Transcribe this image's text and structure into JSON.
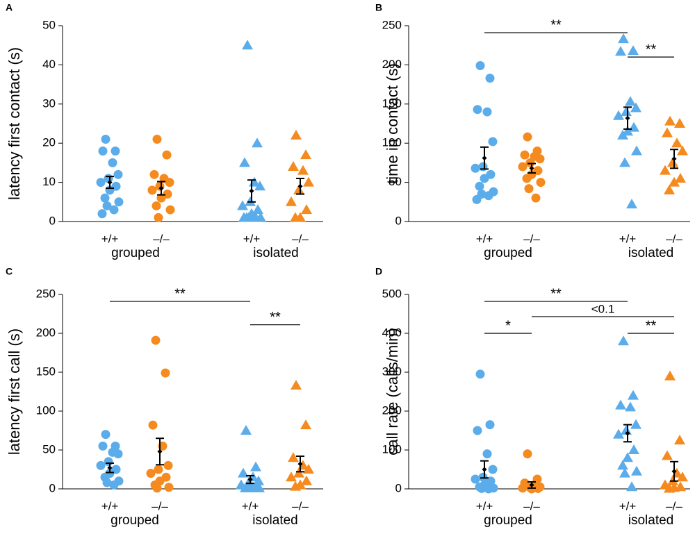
{
  "chart_data": [
    {
      "type": "strip",
      "panel": "A",
      "ylabel": "latency first contact (s)",
      "ylim": [
        0,
        50
      ],
      "yticks": [
        0,
        10,
        20,
        30,
        40,
        50
      ],
      "categories": [
        "+/+",
        "–/–",
        "+/+",
        "–/–"
      ],
      "groups": [
        "grouped",
        "isolated"
      ],
      "colors": [
        "#5aacea",
        "#f58a1f",
        "#5aacea",
        "#f58a1f"
      ],
      "markers": [
        "circle",
        "circle",
        "triangle",
        "triangle"
      ],
      "points": [
        [
          21,
          18,
          18,
          15,
          12,
          11,
          10,
          9,
          8,
          6,
          5,
          4,
          3,
          2
        ],
        [
          21,
          17,
          12,
          11,
          10,
          9,
          8,
          7,
          6,
          4,
          3,
          1
        ],
        [
          45,
          20,
          15,
          10,
          9,
          5,
          4,
          3,
          2,
          1,
          1,
          1,
          1,
          1
        ],
        [
          22,
          17,
          14,
          13,
          10,
          8,
          5,
          3,
          1,
          1
        ]
      ],
      "means": [
        10,
        8.5,
        7.8,
        9
      ],
      "errors": [
        1.5,
        1.7,
        2.8,
        2
      ],
      "annotations": []
    },
    {
      "type": "strip",
      "panel": "B",
      "ylabel": "time in contact (s)",
      "ylim": [
        0,
        250
      ],
      "yticks": [
        0,
        50,
        100,
        150,
        200,
        250
      ],
      "categories": [
        "+/+",
        "–/–",
        "+/+",
        "–/–"
      ],
      "groups": [
        "grouped",
        "isolated"
      ],
      "colors": [
        "#5aacea",
        "#f58a1f",
        "#5aacea",
        "#f58a1f"
      ],
      "markers": [
        "circle",
        "circle",
        "triangle",
        "triangle"
      ],
      "points": [
        [
          199,
          183,
          143,
          140,
          102,
          70,
          68,
          60,
          55,
          45,
          38,
          35,
          33,
          28
        ],
        [
          108,
          90,
          85,
          83,
          80,
          75,
          70,
          65,
          60,
          55,
          50,
          42,
          30
        ],
        [
          233,
          218,
          217,
          153,
          145,
          140,
          135,
          120,
          115,
          110,
          90,
          75,
          22
        ],
        [
          128,
          125,
          113,
          100,
          90,
          75,
          65,
          55,
          50,
          40
        ]
      ],
      "means": [
        81,
        68,
        132,
        80
      ],
      "errors": [
        14,
        6,
        14,
        12
      ],
      "annotations": [
        {
          "text": "**",
          "from": 0,
          "to": 2,
          "y": 241
        },
        {
          "text": "**",
          "from": 2,
          "to": 3,
          "y": 210
        }
      ]
    },
    {
      "type": "strip",
      "panel": "C",
      "ylabel": "latency first call (s)",
      "ylim": [
        0,
        250
      ],
      "yticks": [
        0,
        50,
        100,
        150,
        200,
        250
      ],
      "categories": [
        "+/+",
        "–/–",
        "+/+",
        "–/–"
      ],
      "groups": [
        "grouped",
        "isolated"
      ],
      "colors": [
        "#5aacea",
        "#f58a1f",
        "#5aacea",
        "#f58a1f"
      ],
      "markers": [
        "circle",
        "circle",
        "triangle",
        "triangle"
      ],
      "points": [
        [
          70,
          55,
          55,
          47,
          45,
          35,
          30,
          25,
          20,
          15,
          10,
          8,
          5
        ],
        [
          191,
          149,
          82,
          55,
          30,
          25,
          20,
          15,
          10,
          5,
          2,
          1
        ],
        [
          75,
          28,
          20,
          15,
          10,
          8,
          5,
          3,
          2,
          1,
          1,
          1,
          1
        ],
        [
          133,
          82,
          40,
          30,
          25,
          20,
          15,
          10,
          5,
          3
        ]
      ],
      "means": [
        27,
        48,
        12,
        32
      ],
      "errors": [
        6,
        17,
        5,
        10
      ],
      "annotations": [
        {
          "text": "**",
          "from": 0,
          "to": 2,
          "y": 241
        },
        {
          "text": "**",
          "from": 2,
          "to": 3,
          "y": 211
        }
      ]
    },
    {
      "type": "strip",
      "panel": "D",
      "ylabel": "call rate (calls/min)",
      "ylim": [
        0,
        500
      ],
      "yticks": [
        0,
        100,
        200,
        300,
        400,
        500
      ],
      "categories": [
        "+/+",
        "–/–",
        "+/+",
        "–/–"
      ],
      "groups": [
        "grouped",
        "isolated"
      ],
      "colors": [
        "#5aacea",
        "#f58a1f",
        "#5aacea",
        "#f58a1f"
      ],
      "markers": [
        "circle",
        "circle",
        "triangle",
        "triangle"
      ],
      "points": [
        [
          295,
          165,
          150,
          90,
          50,
          30,
          25,
          20,
          10,
          5,
          2,
          1,
          0
        ],
        [
          90,
          25,
          15,
          10,
          5,
          3,
          2,
          1,
          0
        ],
        [
          380,
          240,
          215,
          210,
          165,
          150,
          140,
          100,
          80,
          60,
          45,
          40,
          5
        ],
        [
          290,
          125,
          85,
          40,
          30,
          20,
          10,
          5,
          3,
          1
        ]
      ],
      "means": [
        50,
        10,
        143,
        45
      ],
      "errors": [
        22,
        8,
        22,
        25
      ],
      "annotations": [
        {
          "text": "**",
          "from": 0,
          "to": 2,
          "y": 482
        },
        {
          "text": "*",
          "from": 0,
          "to": 1,
          "y": 400
        },
        {
          "text": "<0.1",
          "from": 1,
          "to": 3,
          "y": 443
        },
        {
          "text": "**",
          "from": 2,
          "to": 3,
          "y": 400
        }
      ]
    }
  ]
}
